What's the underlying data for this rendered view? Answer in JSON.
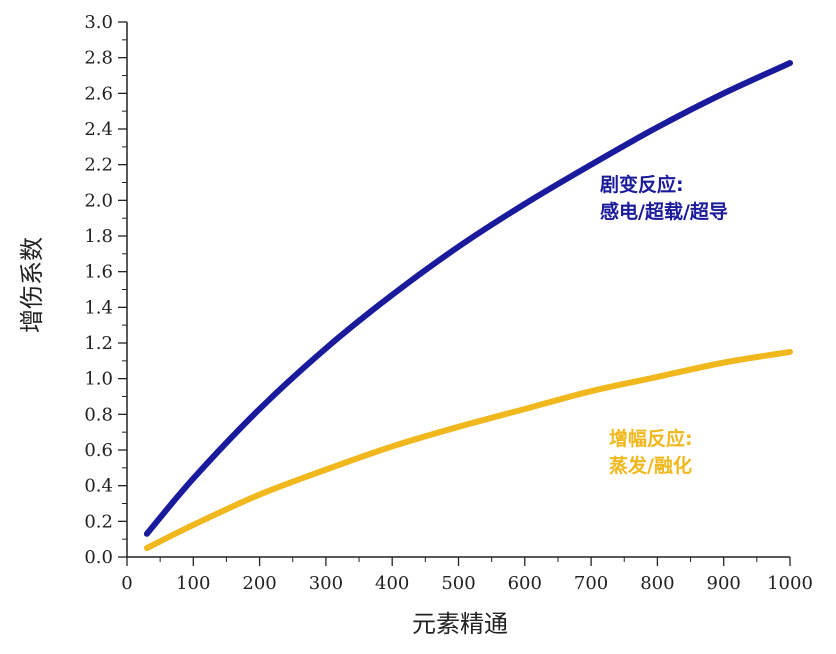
{
  "chart_data": {
    "type": "line",
    "xlabel": "元素精通",
    "ylabel": "增伤系数",
    "xlim": [
      0,
      1000
    ],
    "ylim": [
      0,
      3.0
    ],
    "x_ticks": [
      "0",
      "100",
      "200",
      "300",
      "400",
      "500",
      "600",
      "700",
      "800",
      "900",
      "1000"
    ],
    "y_ticks": [
      "0.0",
      "0.2",
      "0.4",
      "0.6",
      "0.8",
      "1.0",
      "1.2",
      "1.4",
      "1.6",
      "1.8",
      "2.0",
      "2.2",
      "2.4",
      "2.6",
      "2.8",
      "3.0"
    ],
    "grid": false,
    "series": [
      {
        "label_line1": "剧变反应:",
        "label_line2": "感电/超载/超导",
        "color": "#1a1a9c",
        "x": [
          30,
          100,
          200,
          300,
          400,
          500,
          600,
          700,
          800,
          900,
          1000
        ],
        "y": [
          0.13,
          0.44,
          0.83,
          1.17,
          1.47,
          1.74,
          1.98,
          2.2,
          2.41,
          2.6,
          2.77
        ]
      },
      {
        "label_line1": "增幅反应:",
        "label_line2": "蒸发/融化",
        "color": "#f0b81c",
        "x": [
          30,
          100,
          200,
          300,
          400,
          500,
          600,
          700,
          800,
          900,
          1000
        ],
        "y": [
          0.05,
          0.18,
          0.35,
          0.49,
          0.62,
          0.73,
          0.83,
          0.93,
          1.01,
          1.09,
          1.15
        ]
      }
    ]
  }
}
